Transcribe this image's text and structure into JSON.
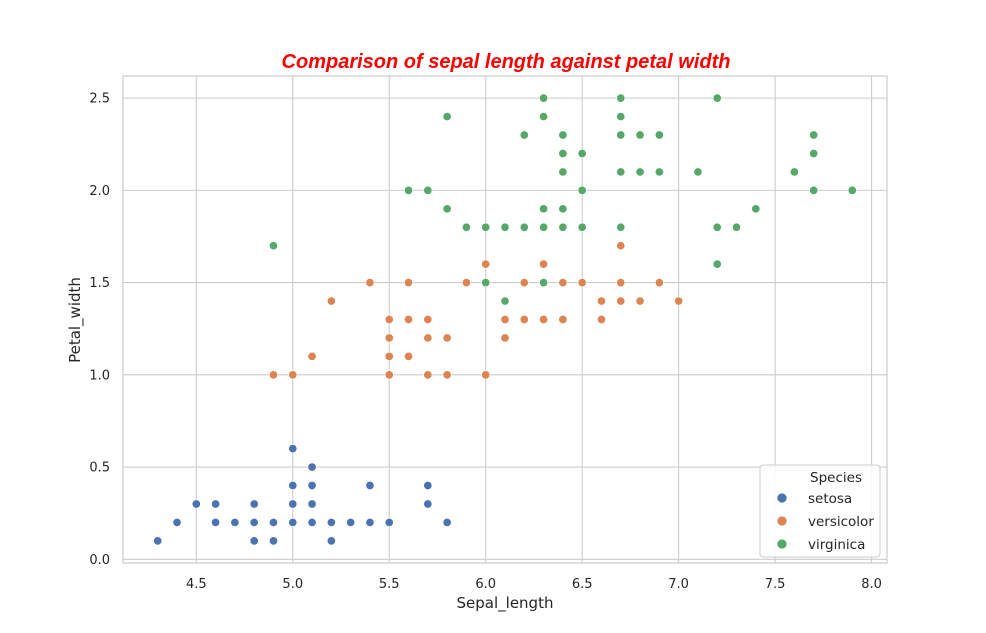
{
  "chart_data": {
    "type": "scatter",
    "title": "Comparison of sepal length against petal width",
    "title_color": "#ff0000",
    "xlabel": "Sepal_length",
    "ylabel": "Petal_width",
    "xlim": [
      4.12,
      8.08
    ],
    "ylim": [
      -0.02,
      2.62
    ],
    "xticks": [
      "4.5",
      "5.0",
      "5.5",
      "6.0",
      "6.5",
      "7.0",
      "7.5",
      "8.0"
    ],
    "yticks": [
      "0.0",
      "0.5",
      "1.0",
      "1.5",
      "2.0",
      "2.5"
    ],
    "grid": true,
    "legend": {
      "title": "Species",
      "placement": "lower-right"
    },
    "series": [
      {
        "name": "setosa",
        "color": "#4c72b0",
        "points": [
          [
            4.3,
            0.1
          ],
          [
            4.4,
            0.2
          ],
          [
            4.5,
            0.3
          ],
          [
            4.6,
            0.3
          ],
          [
            4.6,
            0.2
          ],
          [
            4.7,
            0.2
          ],
          [
            4.8,
            0.3
          ],
          [
            4.8,
            0.2
          ],
          [
            4.8,
            0.1
          ],
          [
            4.9,
            0.2
          ],
          [
            4.9,
            0.1
          ],
          [
            5.0,
            0.6
          ],
          [
            5.0,
            0.4
          ],
          [
            5.0,
            0.3
          ],
          [
            5.0,
            0.2
          ],
          [
            5.1,
            0.5
          ],
          [
            5.1,
            0.4
          ],
          [
            5.1,
            0.3
          ],
          [
            5.1,
            0.2
          ],
          [
            5.2,
            0.2
          ],
          [
            5.2,
            0.1
          ],
          [
            5.3,
            0.2
          ],
          [
            5.4,
            0.4
          ],
          [
            5.4,
            0.2
          ],
          [
            5.5,
            0.2
          ],
          [
            5.7,
            0.4
          ],
          [
            5.7,
            0.3
          ],
          [
            5.8,
            0.2
          ]
        ]
      },
      {
        "name": "versicolor",
        "color": "#dd8452",
        "points": [
          [
            4.9,
            1.0
          ],
          [
            5.0,
            1.0
          ],
          [
            5.1,
            1.1
          ],
          [
            5.2,
            1.4
          ],
          [
            5.4,
            1.5
          ],
          [
            5.5,
            1.3
          ],
          [
            5.5,
            1.2
          ],
          [
            5.5,
            1.1
          ],
          [
            5.5,
            1.0
          ],
          [
            5.6,
            1.5
          ],
          [
            5.6,
            1.3
          ],
          [
            5.6,
            1.1
          ],
          [
            5.7,
            1.3
          ],
          [
            5.7,
            1.2
          ],
          [
            5.7,
            1.0
          ],
          [
            5.8,
            1.2
          ],
          [
            5.8,
            1.0
          ],
          [
            5.9,
            1.5
          ],
          [
            6.0,
            1.6
          ],
          [
            6.0,
            1.0
          ],
          [
            6.1,
            1.3
          ],
          [
            6.1,
            1.2
          ],
          [
            6.2,
            1.5
          ],
          [
            6.2,
            1.3
          ],
          [
            6.3,
            1.6
          ],
          [
            6.3,
            1.3
          ],
          [
            6.4,
            1.5
          ],
          [
            6.4,
            1.3
          ],
          [
            6.5,
            1.5
          ],
          [
            6.6,
            1.4
          ],
          [
            6.6,
            1.3
          ],
          [
            6.7,
            1.7
          ],
          [
            6.7,
            1.5
          ],
          [
            6.7,
            1.4
          ],
          [
            6.8,
            1.4
          ],
          [
            6.9,
            1.5
          ],
          [
            7.0,
            1.4
          ]
        ]
      },
      {
        "name": "virginica",
        "color": "#55a868",
        "points": [
          [
            4.9,
            1.7
          ],
          [
            5.6,
            2.0
          ],
          [
            5.7,
            2.0
          ],
          [
            5.8,
            2.4
          ],
          [
            5.8,
            1.9
          ],
          [
            5.9,
            1.8
          ],
          [
            6.0,
            1.8
          ],
          [
            6.0,
            1.5
          ],
          [
            6.1,
            1.8
          ],
          [
            6.1,
            1.4
          ],
          [
            6.2,
            2.3
          ],
          [
            6.2,
            1.8
          ],
          [
            6.3,
            2.5
          ],
          [
            6.3,
            2.4
          ],
          [
            6.3,
            1.9
          ],
          [
            6.3,
            1.8
          ],
          [
            6.3,
            1.5
          ],
          [
            6.4,
            2.3
          ],
          [
            6.4,
            2.2
          ],
          [
            6.4,
            2.1
          ],
          [
            6.4,
            1.9
          ],
          [
            6.4,
            1.8
          ],
          [
            6.5,
            2.2
          ],
          [
            6.5,
            2.0
          ],
          [
            6.5,
            1.8
          ],
          [
            6.7,
            2.5
          ],
          [
            6.7,
            2.4
          ],
          [
            6.7,
            2.3
          ],
          [
            6.7,
            2.1
          ],
          [
            6.7,
            1.8
          ],
          [
            6.8,
            2.3
          ],
          [
            6.8,
            2.1
          ],
          [
            6.9,
            2.3
          ],
          [
            6.9,
            2.1
          ],
          [
            7.1,
            2.1
          ],
          [
            7.2,
            2.5
          ],
          [
            7.2,
            1.8
          ],
          [
            7.2,
            1.6
          ],
          [
            7.3,
            1.8
          ],
          [
            7.4,
            1.9
          ],
          [
            7.6,
            2.1
          ],
          [
            7.7,
            2.3
          ],
          [
            7.7,
            2.2
          ],
          [
            7.7,
            2.0
          ],
          [
            7.9,
            2.0
          ]
        ]
      }
    ]
  }
}
